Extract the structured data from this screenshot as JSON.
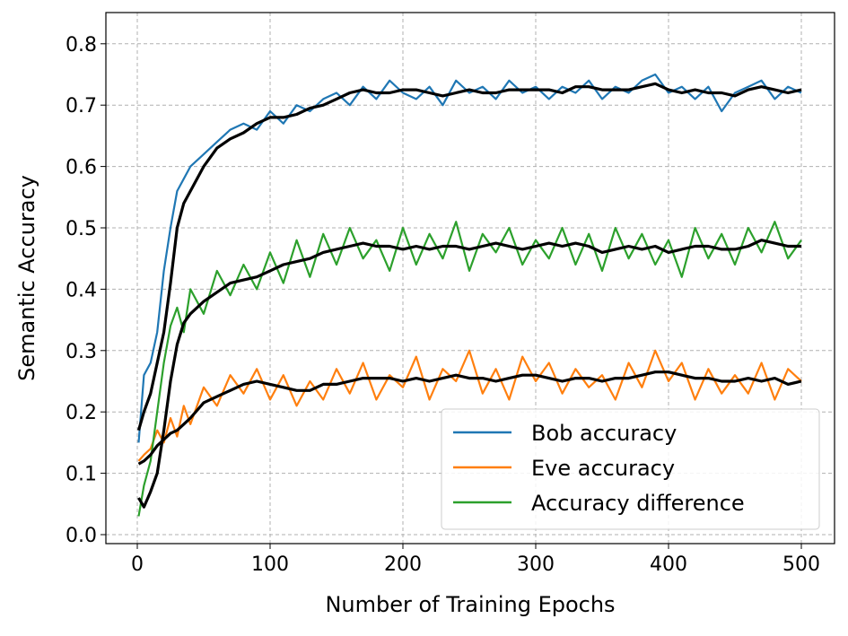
{
  "chart_data": {
    "type": "line",
    "title": "",
    "xlabel": "Number of Training Epochs",
    "ylabel": "Semantic Accuracy",
    "xlim": [
      -25,
      525
    ],
    "ylim": [
      -0.015,
      0.85
    ],
    "xticks": [
      0,
      100,
      200,
      300,
      400,
      500
    ],
    "yticks": [
      0.0,
      0.1,
      0.2,
      0.3,
      0.4,
      0.5,
      0.6,
      0.7,
      0.8
    ],
    "ytick_labels": [
      "0.0",
      "0.1",
      "0.2",
      "0.3",
      "0.4",
      "0.5",
      "0.6",
      "0.7",
      "0.8"
    ],
    "grid": true,
    "legend_position": "bottom-right",
    "x": [
      1,
      5,
      10,
      15,
      20,
      25,
      30,
      35,
      40,
      50,
      60,
      70,
      80,
      90,
      100,
      110,
      120,
      130,
      140,
      150,
      160,
      170,
      180,
      190,
      200,
      210,
      220,
      230,
      240,
      250,
      260,
      270,
      280,
      290,
      300,
      310,
      320,
      330,
      340,
      350,
      360,
      370,
      380,
      390,
      400,
      410,
      420,
      430,
      440,
      450,
      460,
      470,
      480,
      490,
      500
    ],
    "series": [
      {
        "name": "Bob accuracy",
        "color": "#1f77b4",
        "values": [
          0.15,
          0.26,
          0.28,
          0.33,
          0.43,
          0.5,
          0.56,
          0.58,
          0.6,
          0.62,
          0.64,
          0.66,
          0.67,
          0.66,
          0.69,
          0.67,
          0.7,
          0.69,
          0.71,
          0.72,
          0.7,
          0.73,
          0.71,
          0.74,
          0.72,
          0.71,
          0.73,
          0.7,
          0.74,
          0.72,
          0.73,
          0.71,
          0.74,
          0.72,
          0.73,
          0.71,
          0.73,
          0.72,
          0.74,
          0.71,
          0.73,
          0.72,
          0.74,
          0.75,
          0.72,
          0.73,
          0.71,
          0.73,
          0.69,
          0.72,
          0.73,
          0.74,
          0.71,
          0.73,
          0.72
        ]
      },
      {
        "name": "Eve accuracy",
        "color": "#ff7f0e",
        "values": [
          0.12,
          0.13,
          0.14,
          0.17,
          0.15,
          0.19,
          0.16,
          0.21,
          0.18,
          0.24,
          0.21,
          0.26,
          0.23,
          0.27,
          0.22,
          0.26,
          0.21,
          0.25,
          0.22,
          0.27,
          0.23,
          0.28,
          0.22,
          0.26,
          0.24,
          0.29,
          0.22,
          0.27,
          0.25,
          0.3,
          0.23,
          0.27,
          0.22,
          0.29,
          0.25,
          0.28,
          0.23,
          0.27,
          0.24,
          0.26,
          0.22,
          0.28,
          0.24,
          0.3,
          0.25,
          0.28,
          0.22,
          0.27,
          0.23,
          0.26,
          0.23,
          0.28,
          0.22,
          0.27,
          0.25
        ]
      },
      {
        "name": "Accuracy difference",
        "color": "#2ca02c",
        "values": [
          0.03,
          0.08,
          0.12,
          0.2,
          0.28,
          0.34,
          0.37,
          0.33,
          0.4,
          0.36,
          0.43,
          0.39,
          0.44,
          0.4,
          0.46,
          0.41,
          0.48,
          0.42,
          0.49,
          0.44,
          0.5,
          0.45,
          0.48,
          0.43,
          0.5,
          0.44,
          0.49,
          0.45,
          0.51,
          0.43,
          0.49,
          0.46,
          0.5,
          0.44,
          0.48,
          0.45,
          0.5,
          0.44,
          0.49,
          0.43,
          0.5,
          0.45,
          0.49,
          0.44,
          0.48,
          0.42,
          0.5,
          0.45,
          0.49,
          0.44,
          0.5,
          0.46,
          0.51,
          0.45,
          0.48
        ]
      },
      {
        "color": "#000000",
        "smoothed": true,
        "values": [
          0.17,
          0.2,
          0.23,
          0.28,
          0.33,
          0.41,
          0.5,
          0.54,
          0.56,
          0.6,
          0.63,
          0.645,
          0.655,
          0.67,
          0.68,
          0.68,
          0.685,
          0.695,
          0.7,
          0.71,
          0.72,
          0.725,
          0.72,
          0.72,
          0.725,
          0.725,
          0.72,
          0.715,
          0.72,
          0.725,
          0.72,
          0.72,
          0.725,
          0.725,
          0.725,
          0.725,
          0.72,
          0.73,
          0.73,
          0.725,
          0.725,
          0.725,
          0.73,
          0.735,
          0.725,
          0.72,
          0.725,
          0.72,
          0.72,
          0.715,
          0.725,
          0.73,
          0.725,
          0.72,
          0.725
        ]
      },
      {
        "color": "#000000",
        "smoothed": true,
        "values": [
          0.115,
          0.12,
          0.13,
          0.145,
          0.155,
          0.165,
          0.17,
          0.18,
          0.19,
          0.215,
          0.225,
          0.235,
          0.245,
          0.25,
          0.245,
          0.24,
          0.235,
          0.235,
          0.245,
          0.245,
          0.25,
          0.255,
          0.255,
          0.255,
          0.25,
          0.255,
          0.25,
          0.255,
          0.26,
          0.255,
          0.255,
          0.25,
          0.255,
          0.26,
          0.26,
          0.255,
          0.25,
          0.255,
          0.255,
          0.25,
          0.255,
          0.255,
          0.26,
          0.265,
          0.265,
          0.26,
          0.255,
          0.255,
          0.25,
          0.25,
          0.255,
          0.25,
          0.255,
          0.245,
          0.25
        ]
      },
      {
        "color": "#000000",
        "smoothed": true,
        "values": [
          0.06,
          0.045,
          0.07,
          0.1,
          0.17,
          0.25,
          0.31,
          0.345,
          0.36,
          0.38,
          0.395,
          0.41,
          0.415,
          0.42,
          0.43,
          0.44,
          0.445,
          0.45,
          0.46,
          0.465,
          0.47,
          0.475,
          0.47,
          0.47,
          0.465,
          0.47,
          0.465,
          0.47,
          0.47,
          0.465,
          0.47,
          0.475,
          0.47,
          0.465,
          0.47,
          0.475,
          0.47,
          0.475,
          0.47,
          0.46,
          0.465,
          0.47,
          0.465,
          0.47,
          0.46,
          0.465,
          0.47,
          0.47,
          0.465,
          0.465,
          0.47,
          0.48,
          0.475,
          0.47,
          0.47
        ]
      }
    ]
  }
}
